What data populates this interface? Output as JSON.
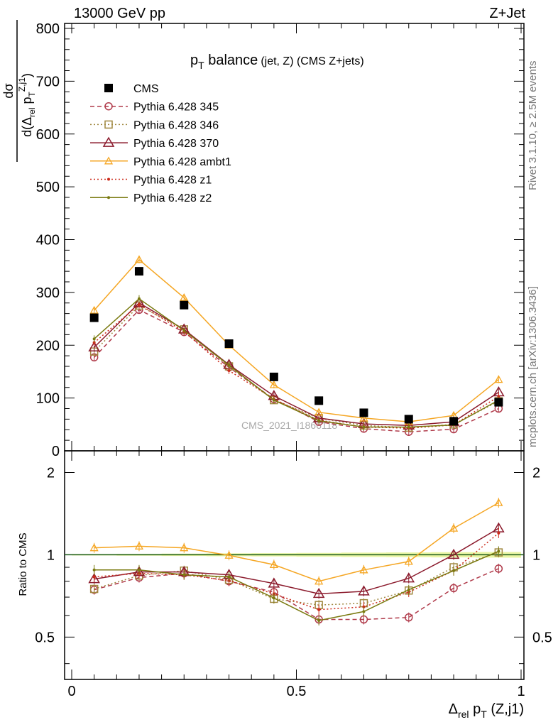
{
  "header": {
    "left": "13000 GeV pp",
    "right": "Z+Jet"
  },
  "side_text": {
    "rivet": "Rivet 3.1.10, ≥ 2.5M events",
    "mcplots": "mcplots.cern.ch [arXiv:1306.3436]"
  },
  "watermark": "CMS_2021_I1866118",
  "labels": {
    "title_main": "p",
    "title_sub": "T",
    "title_rest": " balance",
    "title_small": "(jet, Z) (CMS Z+jets)",
    "ylabel_top_num": "dσ",
    "ylabel_top_den": "d(Δ",
    "ylabel_top_den_sub": "rel",
    "ylabel_top_den2": " p",
    "ylabel_top_den_sub2": "T",
    "ylabel_top_den_sup": "Z,j1",
    "ylabel_top_den3": ")",
    "ylabel_ratio": "Ratio to CMS",
    "xlabel_delta": "Δ",
    "xlabel_sub1": "rel",
    "xlabel_p": " p",
    "xlabel_sub2": "T",
    "xlabel_rest": " (Z,j1)"
  },
  "chart_data": [
    {
      "type": "line",
      "panel": "main",
      "ylim": [
        0,
        800
      ],
      "xlim": [
        0,
        1
      ],
      "yticks": [
        "0",
        "100",
        "200",
        "300",
        "400",
        "500",
        "600",
        "700",
        "800"
      ],
      "x": [
        0.05,
        0.15,
        0.25,
        0.35,
        0.45,
        0.55,
        0.65,
        0.75,
        0.85,
        0.95
      ],
      "series": [
        {
          "name": "CMS",
          "color": "#000000",
          "marker": "square",
          "style": "none",
          "values": [
            252,
            340,
            276,
            203,
            140,
            95,
            72,
            60,
            56,
            92
          ]
        },
        {
          "name": "Pythia 6.428 345",
          "color": "#b03a4a",
          "marker": "circle",
          "style": "dashed",
          "values": [
            177,
            267,
            225,
            158,
            98,
            55,
            42,
            36,
            41,
            80
          ]
        },
        {
          "name": "Pythia 6.428 346",
          "color": "#a08840",
          "marker": "square-open",
          "style": "dotted",
          "values": [
            188,
            275,
            230,
            160,
            96,
            62,
            48,
            44,
            50,
            94
          ]
        },
        {
          "name": "Pythia 6.428 370",
          "color": "#8b1a2c",
          "marker": "triangle",
          "style": "solid",
          "values": [
            196,
            280,
            230,
            163,
            104,
            62,
            51,
            48,
            55,
            111
          ]
        },
        {
          "name": "Pythia 6.428 ambt1",
          "color": "#f5a623",
          "marker": "triangle-small",
          "style": "solid",
          "values": [
            266,
            362,
            290,
            200,
            125,
            73,
            62,
            55,
            67,
            135
          ]
        },
        {
          "name": "Pythia 6.428 z1",
          "color": "#cc2a1a",
          "marker": "dot",
          "style": "dotted",
          "values": [
            205,
            277,
            226,
            152,
            98,
            58,
            45,
            43,
            49,
            103
          ]
        },
        {
          "name": "Pythia 6.428 z2",
          "color": "#7a7a10",
          "marker": "dot",
          "style": "solid",
          "values": [
            212,
            288,
            228,
            162,
            96,
            57,
            45,
            45,
            49,
            96
          ]
        }
      ]
    },
    {
      "type": "line",
      "panel": "ratio",
      "ylim": [
        0.35,
        2.4
      ],
      "xlim": [
        0,
        1
      ],
      "yticks": [
        "0.5",
        "1",
        "2"
      ],
      "xticks": [
        "0",
        "0.5",
        "1"
      ],
      "x": [
        0.05,
        0.15,
        0.25,
        0.35,
        0.45,
        0.55,
        0.65,
        0.75,
        0.85,
        0.95
      ],
      "series": [
        {
          "name": "Pythia 6.428 345",
          "color": "#b03a4a",
          "marker": "circle",
          "style": "dashed",
          "values": [
            0.745,
            0.825,
            0.855,
            0.8,
            0.73,
            0.58,
            0.58,
            0.59,
            0.755,
            0.89
          ]
        },
        {
          "name": "Pythia 6.428 346",
          "color": "#a08840",
          "marker": "square-open",
          "style": "dotted",
          "values": [
            0.75,
            0.84,
            0.875,
            0.81,
            0.69,
            0.655,
            0.665,
            0.74,
            0.9,
            1.02
          ]
        },
        {
          "name": "Pythia 6.428 370",
          "color": "#8b1a2c",
          "marker": "triangle",
          "style": "solid",
          "values": [
            0.815,
            0.865,
            0.865,
            0.845,
            0.785,
            0.72,
            0.735,
            0.82,
            1.0,
            1.25
          ]
        },
        {
          "name": "Pythia 6.428 ambt1",
          "color": "#f5a623",
          "marker": "triangle-small",
          "style": "solid",
          "values": [
            1.06,
            1.075,
            1.06,
            0.995,
            0.92,
            0.8,
            0.88,
            0.945,
            1.25,
            1.55
          ]
        },
        {
          "name": "Pythia 6.428 z1",
          "color": "#cc2a1a",
          "marker": "dot",
          "style": "dotted",
          "values": [
            0.83,
            0.855,
            0.845,
            0.805,
            0.72,
            0.63,
            0.645,
            0.73,
            0.875,
            1.2
          ]
        },
        {
          "name": "Pythia 6.428 z2",
          "color": "#7a7a10",
          "marker": "dot",
          "style": "solid",
          "values": [
            0.88,
            0.88,
            0.845,
            0.83,
            0.695,
            0.575,
            0.62,
            0.745,
            0.875,
            1.03
          ]
        }
      ]
    }
  ]
}
